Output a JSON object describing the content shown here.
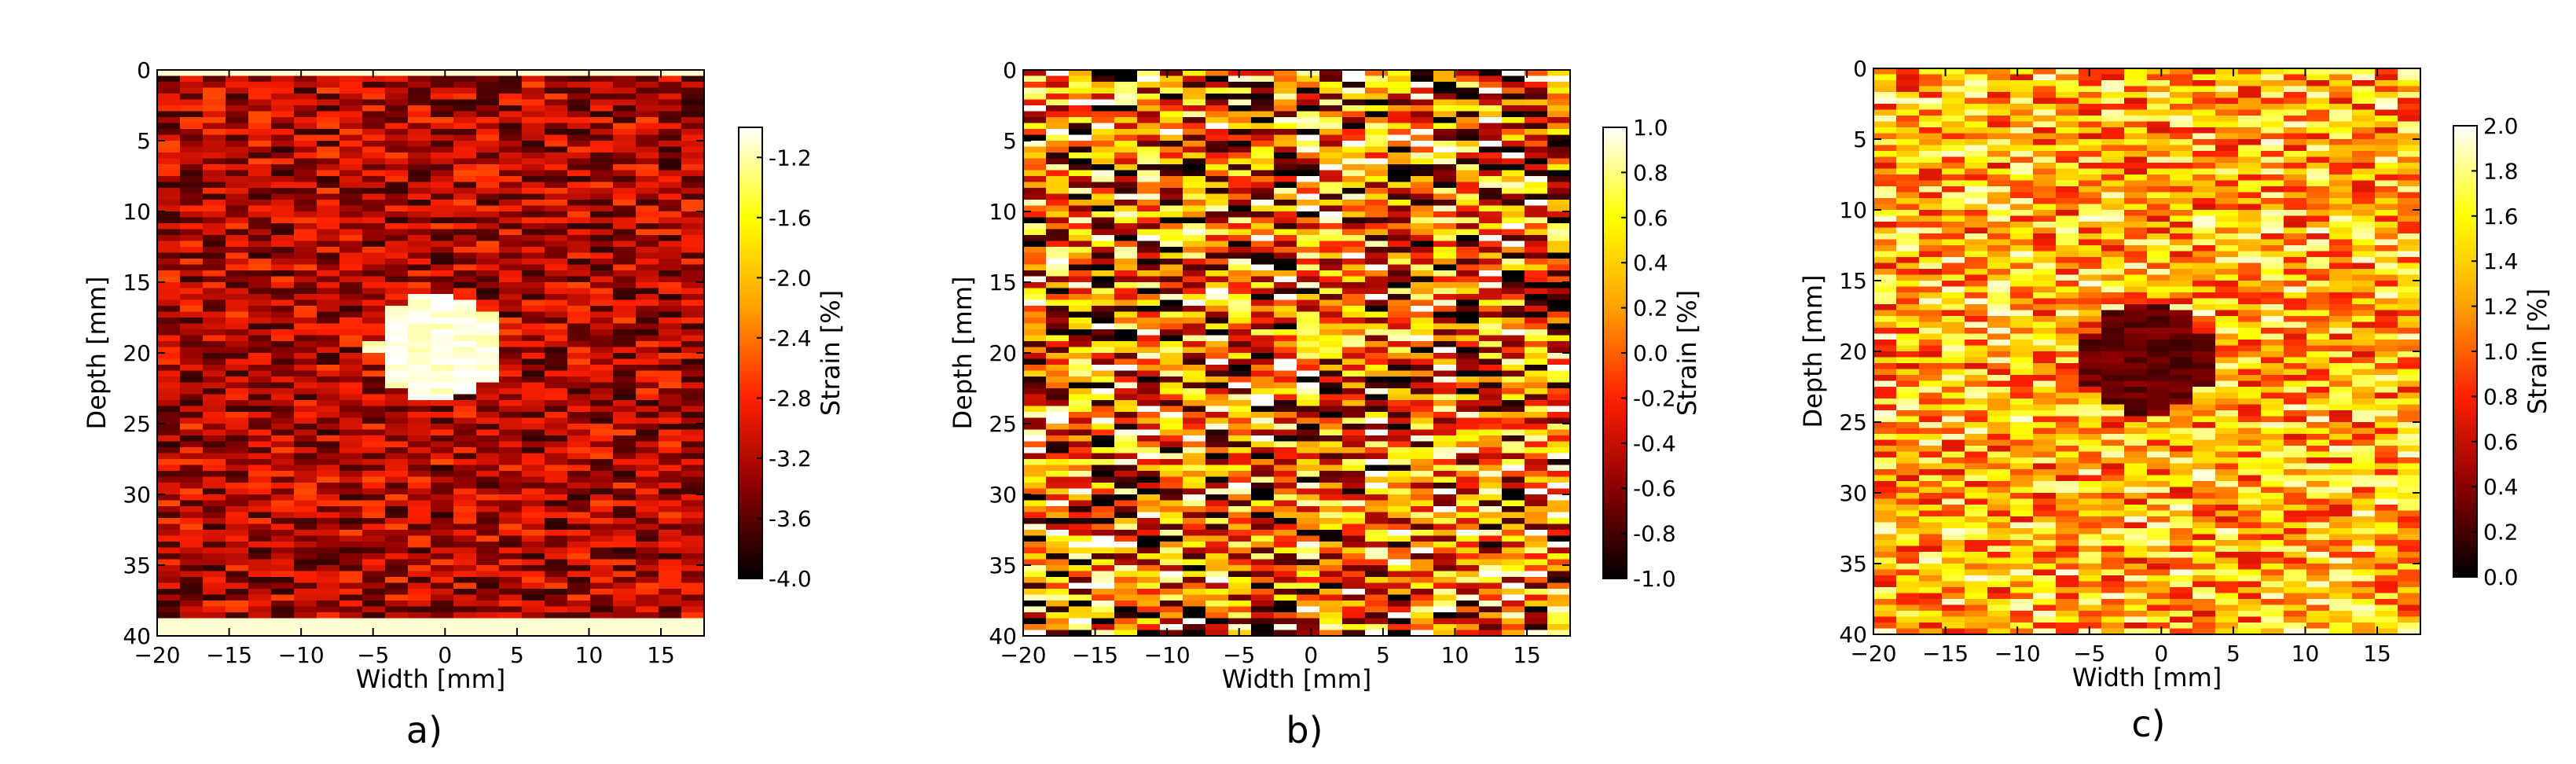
{
  "chart_data": [
    {
      "type": "heatmap",
      "panel_label": "a)",
      "xlabel": "Width [mm]",
      "ylabel": "Depth [mm]",
      "xlim": [
        -20,
        18
      ],
      "ylim": [
        40,
        0
      ],
      "xticks": [
        -20,
        -15,
        -10,
        -5,
        0,
        5,
        10,
        15
      ],
      "yticks": [
        0,
        5,
        10,
        15,
        20,
        25,
        30,
        35,
        40
      ],
      "colorbar": {
        "label": "Strain [%]",
        "range": [
          -4.0,
          -1.0
        ],
        "ticks": [
          "-1.2",
          "-1.6",
          "-2.0",
          "-2.4",
          "-2.8",
          "-3.2",
          "-3.6",
          "-4.0"
        ],
        "tick_values": [
          -1.2,
          -1.6,
          -2.0,
          -2.4,
          -2.8,
          -3.2,
          -3.6,
          -4.0
        ]
      },
      "features": {
        "background_strain": -3.2,
        "inclusion": {
          "center_x": -0.5,
          "center_y": 19.5,
          "radius_x": 4.5,
          "radius_y": 3.8,
          "strain": -1.1
        }
      }
    },
    {
      "type": "heatmap",
      "panel_label": "b)",
      "xlabel": "Width [mm]",
      "ylabel": "Depth [mm]",
      "xlim": [
        -20,
        18
      ],
      "ylim": [
        40,
        0
      ],
      "xticks": [
        -20,
        -15,
        -10,
        -5,
        0,
        5,
        10,
        15
      ],
      "yticks": [
        0,
        5,
        10,
        15,
        20,
        25,
        30,
        35,
        40
      ],
      "colorbar": {
        "label": "Strain [%]",
        "range": [
          -1.0,
          1.0
        ],
        "ticks": [
          "1.0",
          "0.8",
          "0.6",
          "0.4",
          "0.2",
          "0.0",
          "-0.2",
          "-0.4",
          "-0.6",
          "-0.8",
          "-1.0"
        ],
        "tick_values": [
          1.0,
          0.8,
          0.6,
          0.4,
          0.2,
          0.0,
          -0.2,
          -0.4,
          -0.6,
          -0.8,
          -1.0
        ]
      },
      "features": {
        "background_strain": 0.0
      }
    },
    {
      "type": "heatmap",
      "panel_label": "c)",
      "xlabel": "Width [mm]",
      "ylabel": "Depth [mm]",
      "xlim": [
        -20,
        18
      ],
      "ylim": [
        40,
        0
      ],
      "xticks": [
        -20,
        -15,
        -10,
        -5,
        0,
        5,
        10,
        15
      ],
      "yticks": [
        0,
        5,
        10,
        15,
        20,
        25,
        30,
        35,
        40
      ],
      "colorbar": {
        "label": "Strain [%]",
        "range": [
          0.0,
          2.0
        ],
        "ticks": [
          "2.0",
          "1.8",
          "1.6",
          "1.4",
          "1.2",
          "1.0",
          "0.8",
          "0.6",
          "0.4",
          "0.2",
          "0.0"
        ],
        "tick_values": [
          2.0,
          1.8,
          1.6,
          1.4,
          1.2,
          1.0,
          0.8,
          0.6,
          0.4,
          0.2,
          0.0
        ]
      },
      "features": {
        "background_strain": 1.3,
        "inclusion": {
          "center_x": -1,
          "center_y": 20.5,
          "radius_x": 4.5,
          "radius_y": 4.0,
          "strain": 0.3
        }
      }
    }
  ],
  "colormap": [
    "#000000",
    "#8b0000",
    "#ff2000",
    "#ffa000",
    "#ffff00",
    "#ffffff"
  ]
}
